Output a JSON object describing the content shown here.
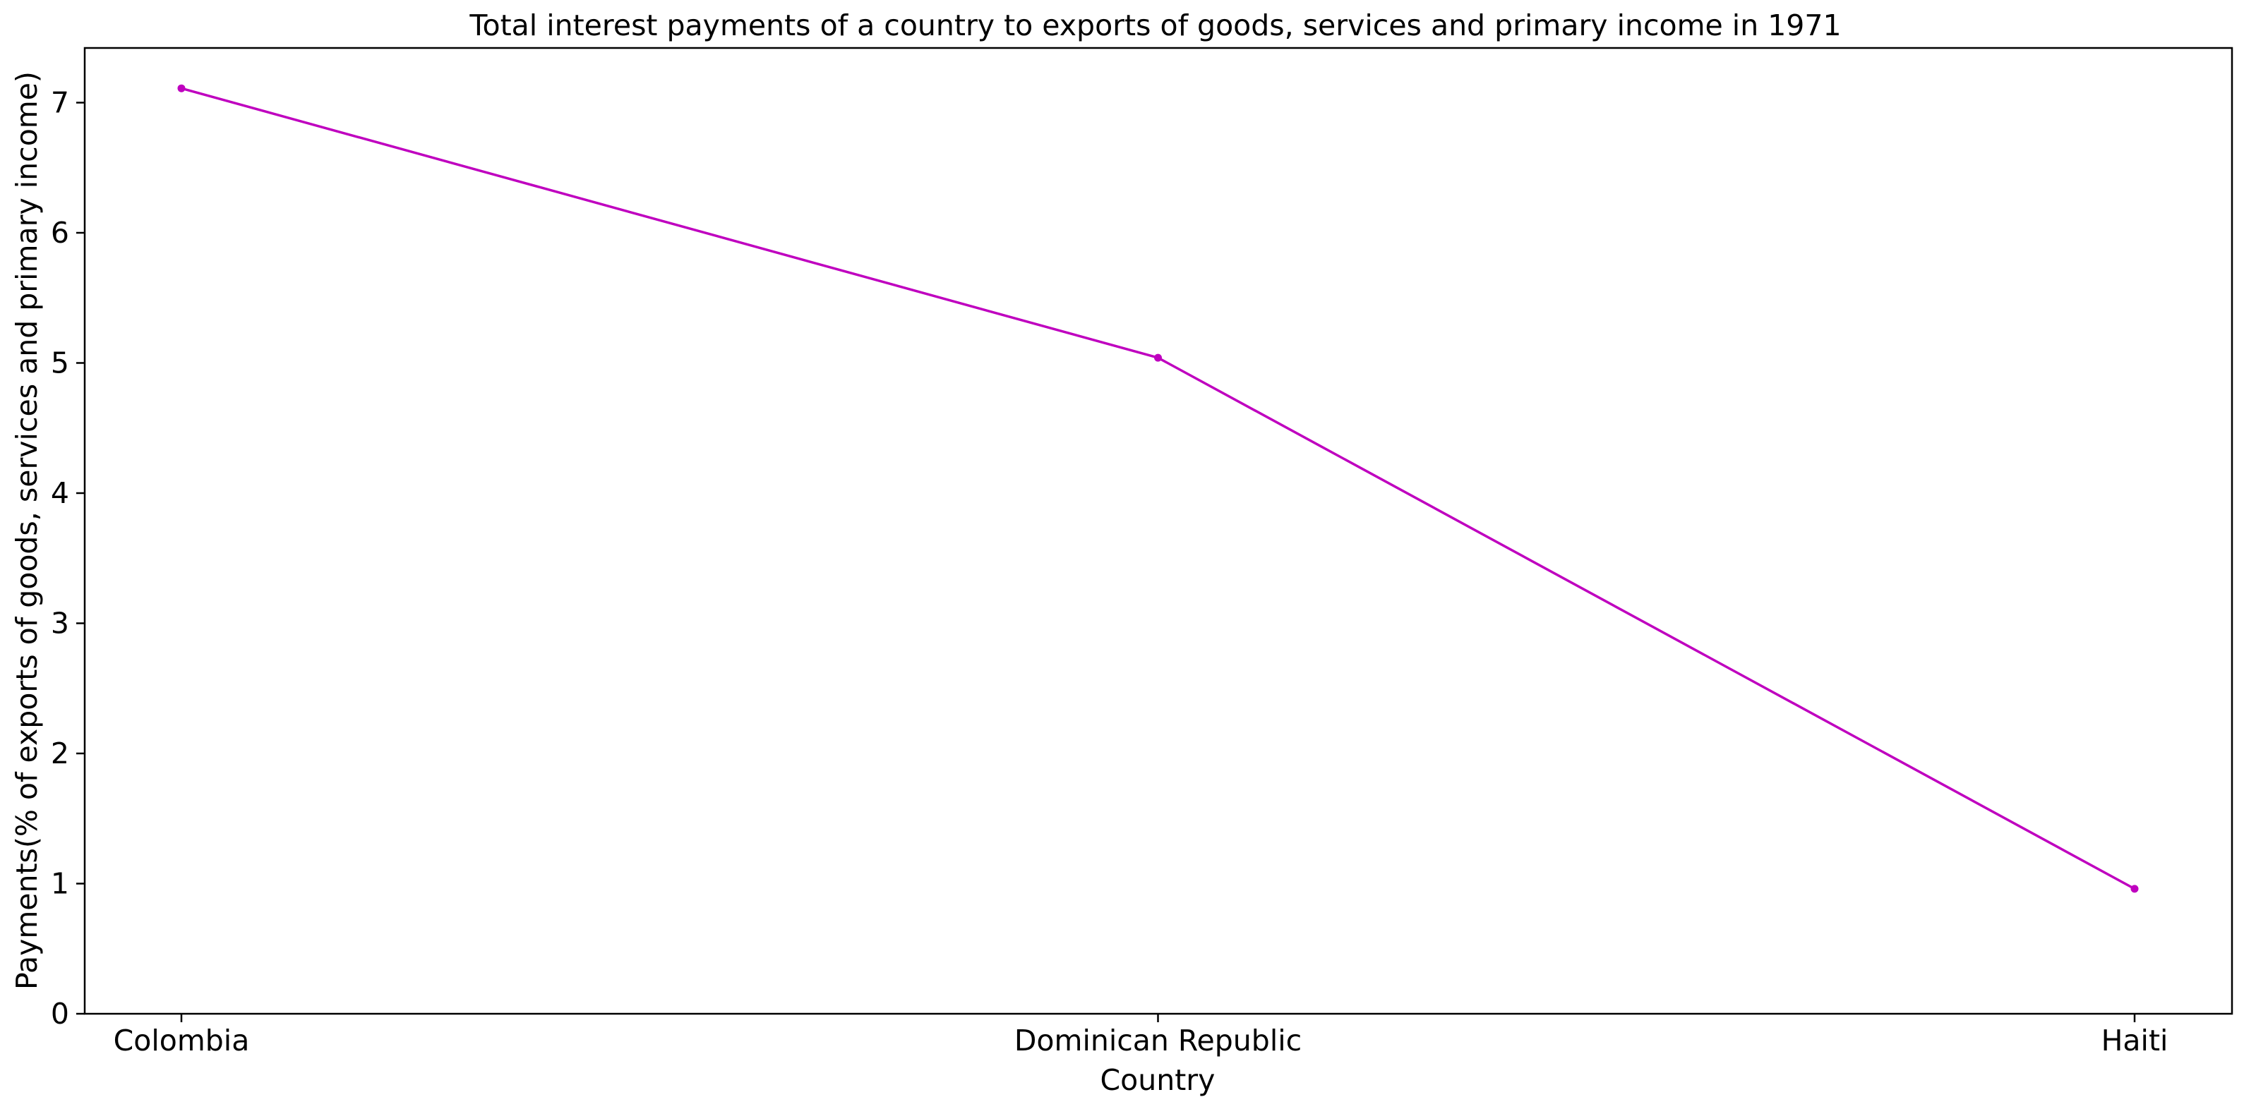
{
  "chart_data": {
    "type": "line",
    "title": "Total interest payments of a country to exports of goods, services and primary income in 1971",
    "xlabel": "Country",
    "ylabel": "Payments(% of exports of goods, services and primary income)",
    "categories": [
      "Colombia",
      "Dominican Republic",
      "Haiti"
    ],
    "series": [
      {
        "values": [
          7.11,
          5.04,
          0.96
        ],
        "color": "#bf00bf"
      }
    ],
    "ylim": [
      0,
      7.42
    ],
    "yticks": [
      0,
      1,
      2,
      3,
      4,
      5,
      6,
      7
    ],
    "grid": false,
    "legend": "none",
    "marker": "dot"
  }
}
